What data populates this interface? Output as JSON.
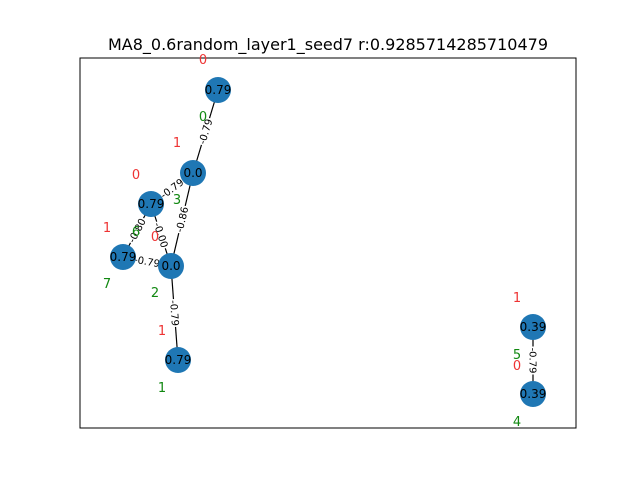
{
  "title": "MA8_0.6random_layer1_seed7  r:0.9285714285710479",
  "colors": {
    "node": "#1f77b4",
    "edge": "#000000",
    "red_annotation": "#ee3333",
    "green_annotation": "#118811",
    "frame": "#000000"
  },
  "nodes": [
    {
      "id": "n0",
      "label": "0.79",
      "red": "0",
      "green": "0"
    },
    {
      "id": "n1",
      "label": "0.0",
      "red": "1",
      "green": "3"
    },
    {
      "id": "n2",
      "label": "0.79",
      "red": "0",
      "green": "6"
    },
    {
      "id": "n3",
      "label": "0.79",
      "red": "1",
      "green": "7"
    },
    {
      "id": "n4",
      "label": "0.0",
      "red": "0",
      "green": "2"
    },
    {
      "id": "n5",
      "label": "0.79",
      "red": "1",
      "green": "1"
    },
    {
      "id": "n6",
      "label": "0.39",
      "red": "1",
      "green": "5"
    },
    {
      "id": "n7",
      "label": "0.39",
      "red": "0",
      "green": "4"
    }
  ],
  "edges": [
    {
      "id": "e0",
      "source": "n0",
      "target": "n1",
      "label": "-0.79"
    },
    {
      "id": "e1",
      "source": "n1",
      "target": "n2",
      "label": "-0.79"
    },
    {
      "id": "e2",
      "source": "n1",
      "target": "n4",
      "label": "-0.86"
    },
    {
      "id": "e3",
      "source": "n2",
      "target": "n3",
      "label": "-0.80"
    },
    {
      "id": "e4",
      "source": "n2",
      "target": "n4",
      "label": "-0.00"
    },
    {
      "id": "e5",
      "source": "n3",
      "target": "n4",
      "label": "-0.79"
    },
    {
      "id": "e6",
      "source": "n4",
      "target": "n5",
      "label": "-0.79"
    },
    {
      "id": "e7",
      "source": "n6",
      "target": "n7",
      "label": "-0.79"
    }
  ]
}
